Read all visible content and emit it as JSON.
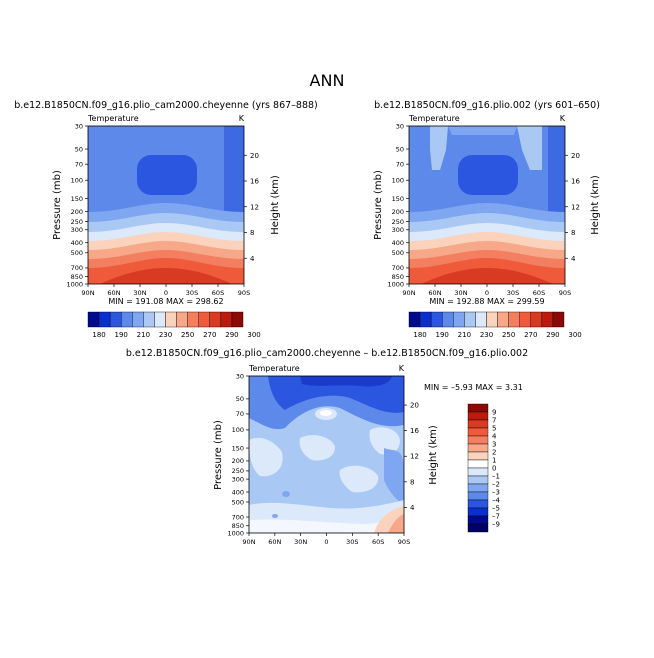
{
  "page_title": "ANN",
  "colors": {
    "cold_dark": "#000a8c",
    "core_blue": "#2b56df",
    "base_blue": "#5d89ea",
    "light_blue": "#a9c8f4",
    "pale": "#dbe9fb",
    "warm_peach": "#fbd3bd",
    "warm_red": "#ef5a3a",
    "hot_red": "#bd1a0e",
    "background": "#ffffff"
  },
  "chart_data": [
    {
      "id": "p1",
      "type": "contour",
      "title": "b.e12.B1850CN.f09_g16.plio_cam2000.cheyenne (yrs 867–888)",
      "left_label": "Temperature",
      "right_label": "K",
      "ylabel": "Pressure (mb)",
      "right_axis_label": "Height (km)",
      "xticks": [
        "90N",
        "60N",
        "30N",
        "0",
        "30S",
        "60S",
        "90S"
      ],
      "yticks": [
        "30",
        "50",
        "70",
        "100",
        "150",
        "200",
        "250",
        "300",
        "400",
        "500",
        "700",
        "850",
        "1000"
      ],
      "right_ticks": [
        "20",
        "16",
        "12",
        "8",
        "4"
      ],
      "stats": "MIN = 191.08   MAX = 298.62",
      "colorbar_labels": [
        "180",
        "190",
        "210",
        "230",
        "250",
        "270",
        "290",
        "300"
      ]
    },
    {
      "id": "p2",
      "type": "contour",
      "title": "b.e12.B1850CN.f09_g16.plio.002 (yrs 601–650)",
      "left_label": "Temperature",
      "right_label": "K",
      "ylabel": "Pressure (mb)",
      "right_axis_label": "Height (km)",
      "xticks": [
        "90N",
        "60N",
        "30N",
        "0",
        "30S",
        "60S",
        "90S"
      ],
      "yticks": [
        "30",
        "50",
        "70",
        "100",
        "150",
        "200",
        "250",
        "300",
        "400",
        "500",
        "700",
        "850",
        "1000"
      ],
      "right_ticks": [
        "20",
        "16",
        "12",
        "8",
        "4"
      ],
      "stats": "MIN = 192.88   MAX = 299.59",
      "colorbar_labels": [
        "180",
        "190",
        "210",
        "230",
        "250",
        "270",
        "290",
        "300"
      ]
    },
    {
      "id": "p3",
      "type": "contour",
      "title": "b.e12.B1850CN.f09_g16.plio_cam2000.cheyenne – b.e12.B1850CN.f09_g16.plio.002",
      "left_label": "Temperature",
      "right_label": "K",
      "ylabel": "Pressure (mb)",
      "right_axis_label": "Height (km)",
      "xticks": [
        "90N",
        "60N",
        "30N",
        "0",
        "30S",
        "60S",
        "90S"
      ],
      "yticks": [
        "30",
        "50",
        "70",
        "100",
        "150",
        "200",
        "250",
        "300",
        "400",
        "500",
        "700",
        "850",
        "1000"
      ],
      "right_ticks": [
        "20",
        "16",
        "12",
        "8",
        "4"
      ],
      "stats": "MIN =  –5.93   MAX =   3.31",
      "colorbar_labels": [
        "9",
        "7",
        "5",
        "4",
        "3",
        "2",
        "1",
        "0",
        "–1",
        "–2",
        "–3",
        "–4",
        "–5",
        "–7",
        "–9"
      ]
    }
  ]
}
